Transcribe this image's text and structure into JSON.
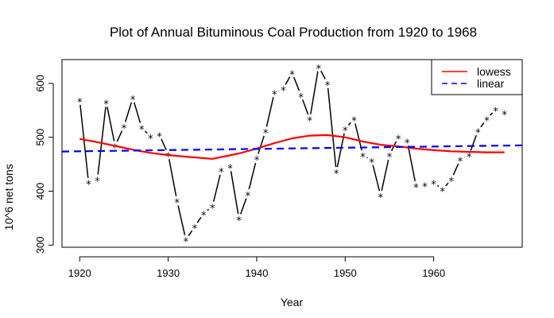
{
  "chart_data": {
    "type": "line",
    "title": "Plot of Annual Bituminous Coal Production from 1920 to 1968",
    "xlabel": "Year",
    "ylabel": "10^6 net tons",
    "xlim": [
      1918,
      1970
    ],
    "ylim": [
      296,
      644
    ],
    "xticks": [
      1920,
      1930,
      1940,
      1950,
      1960
    ],
    "yticks": [
      300,
      400,
      500,
      600
    ],
    "legend_position": "top-right",
    "grid": false,
    "series": [
      {
        "name": "",
        "style": "solid-with-star-markers",
        "color": "#000000",
        "x": [
          1920,
          1921,
          1922,
          1923,
          1924,
          1925,
          1926,
          1927,
          1928,
          1929,
          1930,
          1931,
          1932,
          1933,
          1934,
          1935,
          1936,
          1937,
          1938,
          1939,
          1940,
          1941,
          1942,
          1943,
          1944,
          1945,
          1946,
          1947,
          1948,
          1949,
          1950,
          1951,
          1952,
          1953,
          1954,
          1955,
          1956,
          1957,
          1958,
          1959,
          1960,
          1961,
          1962,
          1963,
          1964,
          1965,
          1966,
          1967,
          1968
        ],
        "values": [
          569,
          416,
          422,
          565,
          484,
          520,
          573,
          518,
          501,
          505,
          468,
          382,
          310,
          334,
          359,
          372,
          439,
          446,
          349,
          395,
          461,
          511,
          583,
          590,
          620,
          578,
          534,
          631,
          600,
          436,
          516,
          534,
          467,
          457,
          392,
          467,
          500,
          493,
          410,
          412,
          416,
          403,
          422,
          459,
          467,
          512,
          534,
          552,
          545
        ]
      },
      {
        "name": "lowess",
        "style": "solid",
        "color": "#ff0000",
        "x": [
          1920,
          1922,
          1924,
          1926,
          1928,
          1930,
          1932,
          1935,
          1938,
          1940,
          1942,
          1944,
          1946,
          1948,
          1950,
          1952,
          1954,
          1956,
          1958,
          1960,
          1962,
          1964,
          1966,
          1968
        ],
        "values": [
          497,
          491,
          484,
          477,
          471,
          467,
          464,
          460,
          470,
          479,
          489,
          498,
          503,
          504,
          500,
          492,
          486,
          483,
          479,
          476,
          474,
          473,
          472,
          472
        ]
      },
      {
        "name": "linear",
        "style": "dashed",
        "color": "#0000ff",
        "x": [
          1918,
          1970
        ],
        "values": [
          473.5,
          485
        ]
      }
    ]
  }
}
